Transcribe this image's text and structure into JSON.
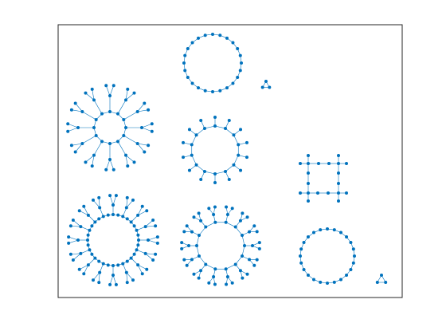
{
  "figure": {
    "background": "#ffffff",
    "axes_box_color": "#262626",
    "edge_color": "#0072bd",
    "node_color": "#0072bd",
    "show_axes_box": true,
    "show_ticks": false
  },
  "components": [
    {
      "name": "ring-24-top",
      "cycle_nodes": 24,
      "branch_nodes": 0,
      "leaf_nodes_per_branch": 0
    },
    {
      "name": "triangle-top",
      "cycle_nodes": 3,
      "branch_nodes": 0,
      "leaf_nodes_per_branch": 0
    },
    {
      "name": "ring-star-12",
      "cycle_nodes": 12,
      "branch_nodes": 12,
      "leaf_nodes_per_branch": 2
    },
    {
      "name": "ring-14-spikes",
      "cycle_nodes": 14,
      "branch_nodes": 14,
      "leaf_nodes_per_branch": 0
    },
    {
      "name": "square-grid",
      "cycle_nodes": 12,
      "branch_nodes": 8,
      "leaf_nodes_per_branch": 0
    },
    {
      "name": "ring-star-16",
      "cycle_nodes": 16,
      "branch_nodes": 16,
      "leaf_nodes_per_branch": 2
    },
    {
      "name": "ring-14-forks",
      "cycle_nodes": 14,
      "branch_nodes": 14,
      "leaf_nodes_per_branch": 2
    },
    {
      "name": "ring-24-bottom",
      "cycle_nodes": 24,
      "branch_nodes": 0,
      "leaf_nodes_per_branch": 0
    },
    {
      "name": "triangle-bottom",
      "cycle_nodes": 3,
      "branch_nodes": 0,
      "leaf_nodes_per_branch": 0
    }
  ]
}
